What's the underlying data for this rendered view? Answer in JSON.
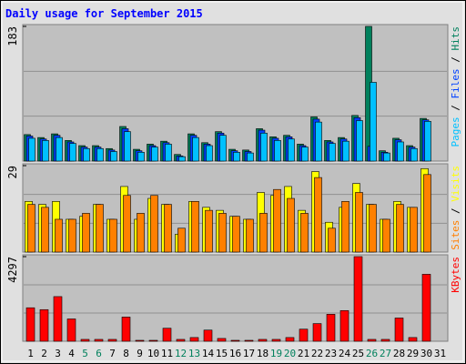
{
  "chart_data": [
    {
      "type": "bar",
      "title": "Daily usage for September 2015",
      "ylim": [
        0,
        183
      ],
      "yticks": [
        183
      ],
      "legend_separator": " / ",
      "series": [
        {
          "name": "Hits",
          "color": "#00805c",
          "values": [
            36,
            32,
            37,
            28,
            21,
            21,
            17,
            47,
            16,
            23,
            27,
            9,
            37,
            25,
            40,
            16,
            15,
            44,
            33,
            35,
            23,
            60,
            28,
            32,
            62,
            183,
            14,
            31,
            21,
            58,
            0
          ]
        },
        {
          "name": "Files",
          "color": "#0040ff",
          "values": [
            34,
            30,
            35,
            26,
            19,
            19,
            15,
            44,
            14,
            21,
            25,
            7,
            35,
            23,
            38,
            14,
            13,
            42,
            31,
            33,
            21,
            57,
            26,
            30,
            59,
            20,
            12,
            29,
            19,
            56,
            0
          ]
        },
        {
          "name": "Pages",
          "color": "#00c0ff",
          "values": [
            31,
            28,
            32,
            24,
            17,
            17,
            13,
            40,
            12,
            19,
            23,
            6,
            32,
            21,
            35,
            12,
            11,
            38,
            28,
            30,
            19,
            53,
            24,
            27,
            55,
            107,
            11,
            26,
            17,
            54,
            0
          ]
        }
      ]
    },
    {
      "type": "bar",
      "ylim": [
        0,
        29
      ],
      "yticks": [
        29
      ],
      "legend_separator": " / ",
      "series": [
        {
          "name": "Visits",
          "color": "#ffff00",
          "values": [
            17,
            16,
            17,
            11,
            12,
            16,
            11,
            22,
            11,
            18,
            16,
            6,
            17,
            15,
            14,
            12,
            11,
            20,
            19,
            22,
            14,
            27,
            10,
            15,
            23,
            16,
            11,
            17,
            15,
            28,
            0
          ]
        },
        {
          "name": "Sites",
          "color": "#ff8000",
          "values": [
            16,
            15,
            11,
            11,
            13,
            16,
            11,
            19,
            13,
            19,
            16,
            8,
            17,
            14,
            13,
            12,
            11,
            13,
            21,
            18,
            13,
            25,
            8,
            17,
            20,
            16,
            11,
            16,
            15,
            26,
            0
          ]
        }
      ]
    },
    {
      "type": "bar",
      "ylim": [
        0,
        4297
      ],
      "yticks": [
        4297
      ],
      "legend_separator": " / ",
      "categories": [
        "1",
        "2",
        "3",
        "4",
        "5",
        "6",
        "7",
        "8",
        "9",
        "10",
        "11",
        "12",
        "13",
        "14",
        "15",
        "16",
        "17",
        "18",
        "19",
        "20",
        "21",
        "22",
        "23",
        "24",
        "25",
        "26",
        "27",
        "28",
        "29",
        "30",
        "31"
      ],
      "weekend_indices": [
        4,
        5,
        11,
        12,
        18,
        19,
        25,
        26
      ],
      "weekend_color": "#00805c",
      "series": [
        {
          "name": "KBytes",
          "color": "#ff0000",
          "values": [
            1700,
            1605,
            2267,
            1133,
            94,
            94,
            94,
            1228,
            47,
            47,
            661,
            94,
            189,
            567,
            142,
            47,
            47,
            94,
            94,
            189,
            614,
            897,
            1369,
            1558,
            4297,
            94,
            94,
            1180,
            189,
            3400,
            0
          ]
        }
      ]
    }
  ]
}
